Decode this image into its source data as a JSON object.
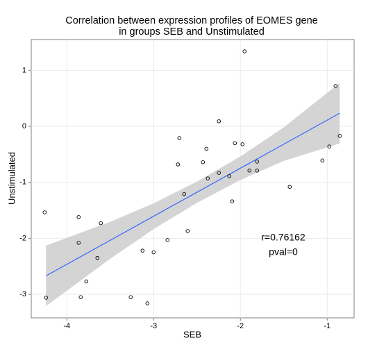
{
  "chart_data": {
    "type": "scatter",
    "title": [
      "Correlation between expression profiles of EOMES gene",
      "in groups SEB and Unstimulated"
    ],
    "x_label": "SEB",
    "y_label": "Unstimulated",
    "annotations": [
      "r=0.76162",
      "pval=0"
    ],
    "xlim": [
      -4.41,
      -0.69
    ],
    "ylim": [
      -3.42,
      1.55
    ],
    "xticks": [
      -4,
      -3,
      -2,
      -1
    ],
    "yticks": [
      -3,
      -2,
      -1,
      0,
      1
    ],
    "grid": true,
    "point_color": "#000000",
    "x": [
      -4.256,
      -4.24,
      -3.864,
      -3.864,
      -3.84,
      -3.776,
      -3.648,
      -3.608,
      -3.264,
      -3.128,
      -3.072,
      -3.0,
      -2.84,
      -2.704,
      -2.72,
      -2.648,
      -2.608,
      -2.432,
      -2.392,
      -2.376,
      -2.248,
      -2.248,
      -2.128,
      -2.096,
      -2.064,
      -1.976,
      -1.952,
      -1.896,
      -1.808,
      -1.808,
      -1.432,
      -1.056,
      -0.976,
      -0.904,
      -0.856
    ],
    "values": [
      -1.536,
      -3.06,
      -1.62,
      -2.08,
      -3.05,
      -2.77,
      -2.35,
      -1.73,
      -3.05,
      -2.22,
      -3.16,
      -2.25,
      -2.03,
      -0.21,
      -0.68,
      -1.21,
      -1.87,
      -0.64,
      -0.4,
      -0.93,
      0.09,
      -0.83,
      -0.89,
      -1.34,
      -0.3,
      -0.32,
      1.34,
      -0.79,
      -0.63,
      -0.79,
      -1.08,
      -0.61,
      -0.36,
      0.72,
      -0.17
    ],
    "fit": {
      "color": "#3366ff",
      "band_color": "#cccccc",
      "x": [
        -4.24,
        -3.5,
        -3,
        -2.5,
        -2,
        -1.5,
        -0.856
      ],
      "values": [
        -2.67,
        -2.035,
        -1.605,
        -1.176,
        -0.747,
        -0.318,
        0.235
      ],
      "lower": [
        -3.21,
        -2.365,
        -1.835,
        -1.366,
        -0.957,
        -0.618,
        -0.305
      ],
      "upper": [
        -2.13,
        -1.705,
        -1.375,
        -0.986,
        -0.537,
        -0.018,
        0.775
      ]
    }
  }
}
